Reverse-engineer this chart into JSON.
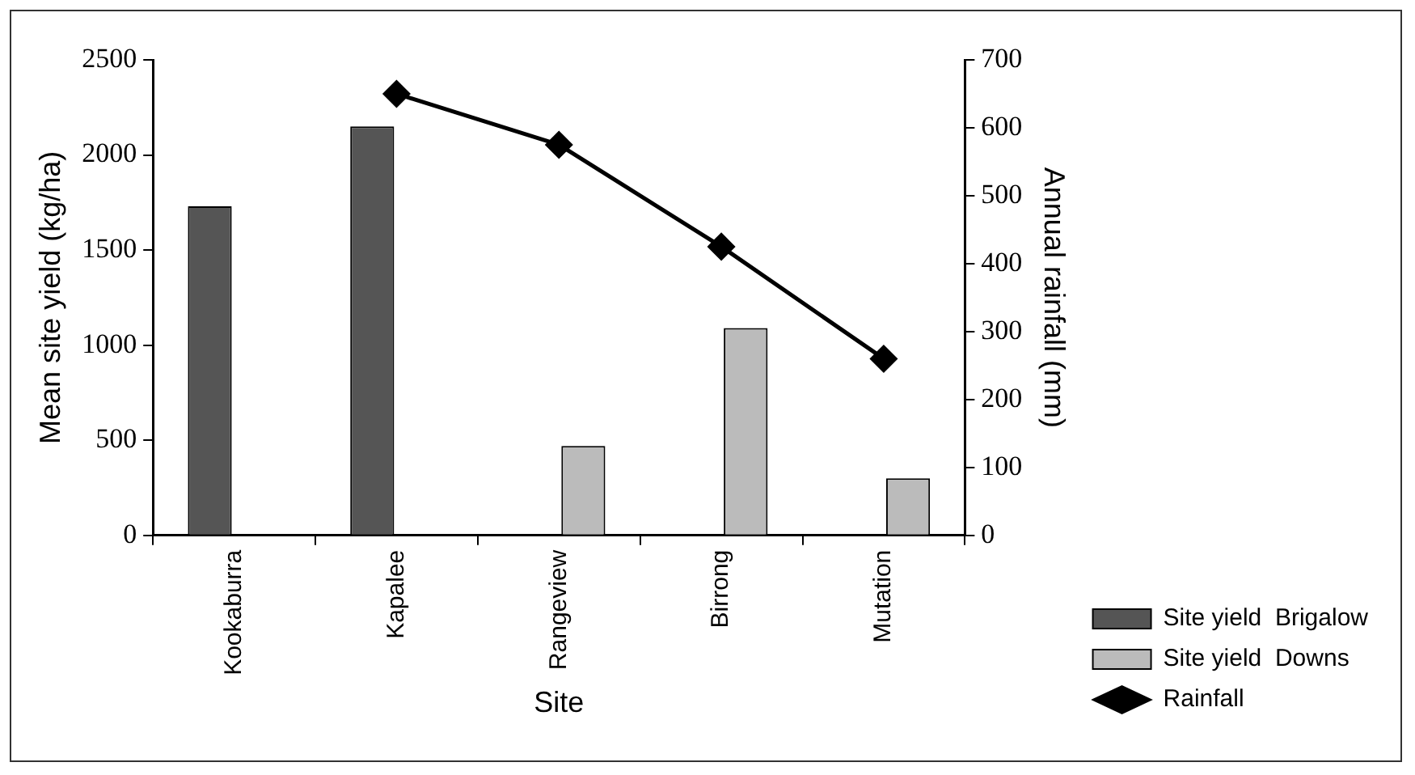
{
  "chart_data": {
    "type": "bar",
    "xlabel": "Site",
    "ylabel": "Mean site yield (kg/ha)",
    "y2label": "Annual rainfall (mm)",
    "categories": [
      "Kookaburra",
      "Kapalee",
      "Rangeview",
      "Birrong",
      "Mutation"
    ],
    "series": [
      {
        "name": "Site yield  Brigalow",
        "color": "#555555",
        "values": [
          1730,
          2150,
          null,
          null,
          null
        ]
      },
      {
        "name": "Site yield  Downs",
        "color": "#bbbbbb",
        "values": [
          null,
          null,
          470,
          1090,
          300
        ]
      },
      {
        "name": "Rainfall",
        "type": "line",
        "axis": "y2",
        "color": "#000000",
        "values": [
          null,
          650,
          575,
          425,
          260
        ]
      }
    ],
    "ylim": [
      0,
      2500
    ],
    "yticks": [
      0,
      500,
      1000,
      1500,
      2000,
      2500
    ],
    "y2lim": [
      0,
      700
    ],
    "y2ticks": [
      0,
      100,
      200,
      300,
      400,
      500,
      600,
      700
    ],
    "grid": false,
    "legend": "bottom right",
    "marker": "diamond",
    "line_style": "solid"
  }
}
